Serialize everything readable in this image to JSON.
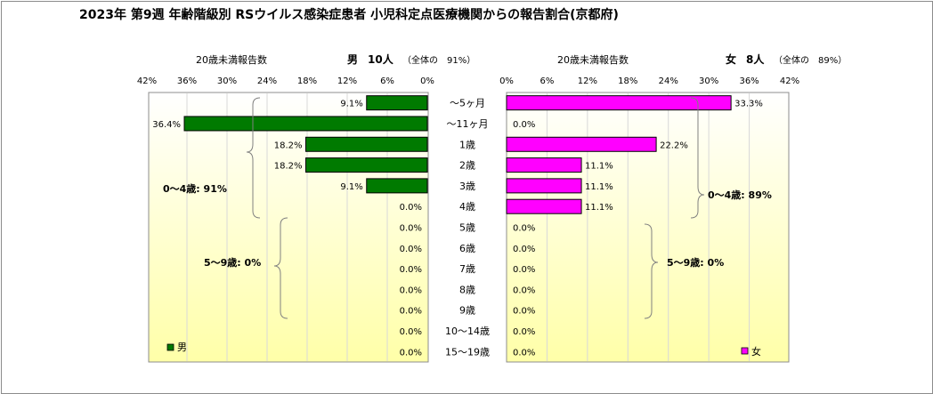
{
  "title": "2023年 第9週 年齢階級別 RSウイルス感染症患者 小児科定点医療機関からの報告割合(京都府)",
  "colors": {
    "male": "#007a00",
    "female": "#ff00ff",
    "bg_top": "#ffffff",
    "bg_bottom": "#ffffa8",
    "grid": "#d8d8d8",
    "bracket": "#808080"
  },
  "chart_data": [
    {
      "type": "bar",
      "orientation": "horizontal-left",
      "series": [
        {
          "name": "男",
          "values": [
            9.1,
            36.4,
            18.2,
            18.2,
            9.1,
            0.0,
            0.0,
            0.0,
            0.0,
            0.0,
            0.0,
            0.0,
            0.0
          ]
        }
      ],
      "categories": [
        "～5ヶ月",
        "～11ヶ月",
        "1歳",
        "2歳",
        "3歳",
        "4歳",
        "5歳",
        "6歳",
        "7歳",
        "8歳",
        "9歳",
        "10～14歳",
        "15～19歳"
      ],
      "data_labels": [
        "9.1%",
        "36.4%",
        "18.2%",
        "18.2%",
        "9.1%",
        "0.0%",
        "0.0%",
        "0.0%",
        "0.0%",
        "0.0%",
        "0.0%",
        "0.0%",
        "0.0%"
      ],
      "xlim": [
        0,
        42
      ],
      "ticks": [
        "42%",
        "36%",
        "30%",
        "24%",
        "18%",
        "12%",
        "6%",
        "0%"
      ],
      "header_label": "20歳未満報告数",
      "header_sex": "男",
      "header_count": "10人",
      "header_share": "（全体の　91%）",
      "legend": "男",
      "annotations": [
        "0～4歳: 91%",
        "5～9歳: 0%"
      ]
    },
    {
      "type": "bar",
      "orientation": "horizontal-right",
      "series": [
        {
          "name": "女",
          "values": [
            33.3,
            0.0,
            22.2,
            11.1,
            11.1,
            11.1,
            0.0,
            0.0,
            0.0,
            0.0,
            0.0,
            0.0,
            0.0
          ]
        }
      ],
      "categories": [
        "～5ヶ月",
        "～11ヶ月",
        "1歳",
        "2歳",
        "3歳",
        "4歳",
        "5歳",
        "6歳",
        "7歳",
        "8歳",
        "9歳",
        "10～14歳",
        "15～19歳"
      ],
      "data_labels": [
        "33.3%",
        "0.0%",
        "22.2%",
        "11.1%",
        "11.1%",
        "11.1%",
        "0.0%",
        "0.0%",
        "0.0%",
        "0.0%",
        "0.0%",
        "0.0%",
        "0.0%"
      ],
      "xlim": [
        0,
        42
      ],
      "ticks": [
        "0%",
        "6%",
        "12%",
        "18%",
        "24%",
        "30%",
        "36%",
        "42%"
      ],
      "header_label": "20歳未満報告数",
      "header_sex": "女",
      "header_count": "8人",
      "header_share": "（全体の　89%）",
      "legend": "女",
      "annotations": [
        "0～4歳: 89%",
        "5～9歳: 0%"
      ]
    }
  ]
}
